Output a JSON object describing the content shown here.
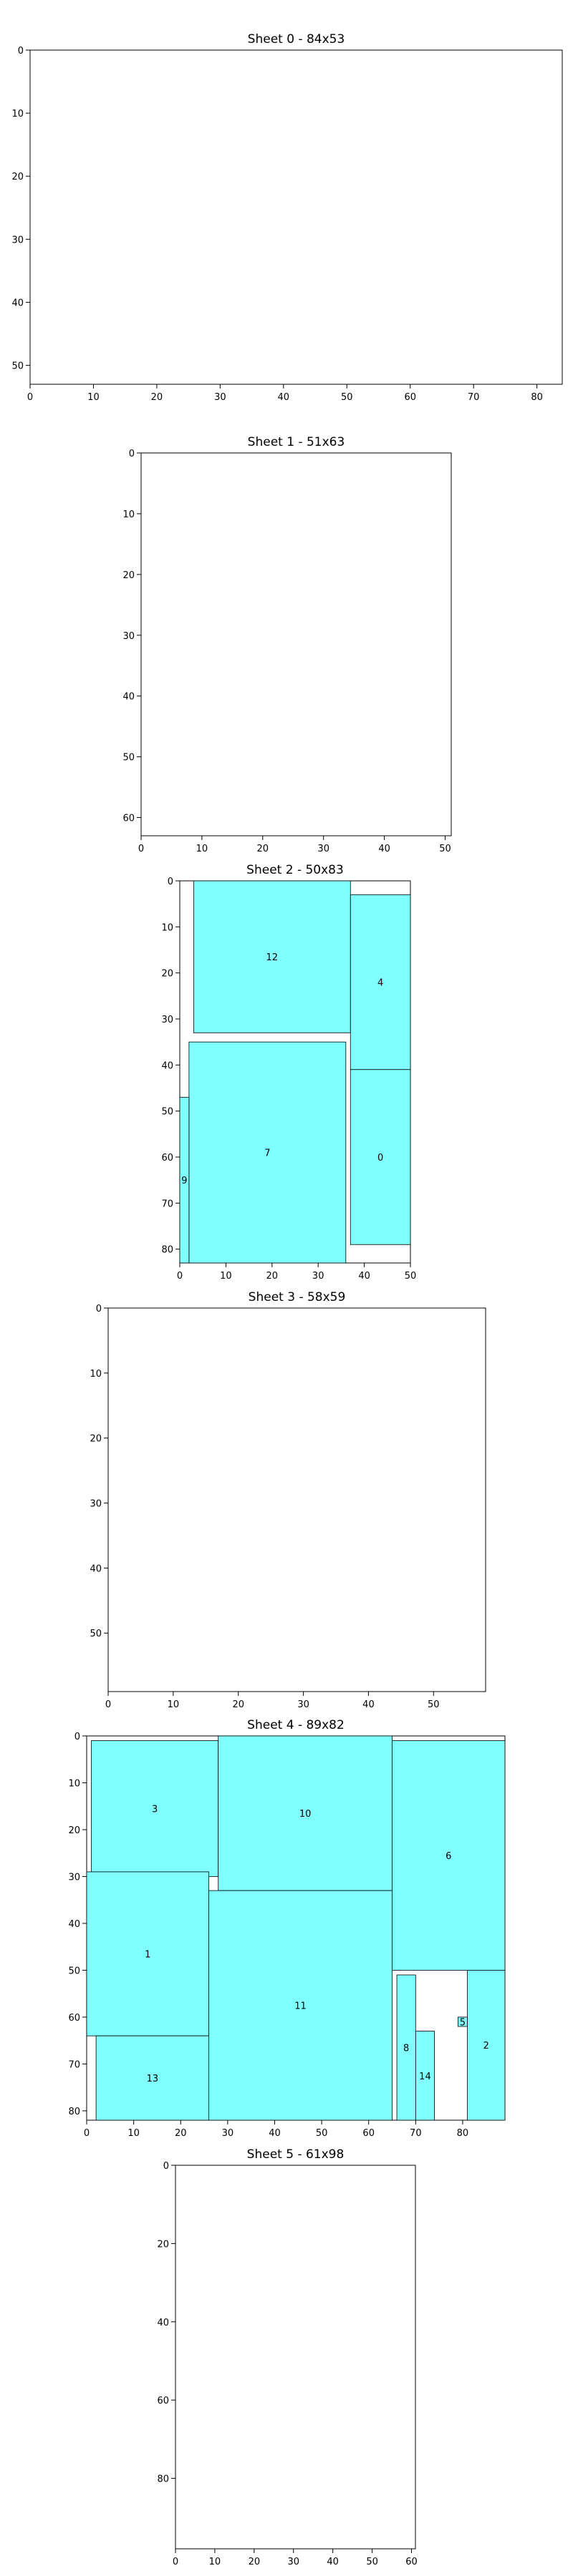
{
  "piece_color": "#80ffff",
  "chart_data": [
    {
      "type": "packing",
      "title": "Sheet 0 - 84x53",
      "width": 84,
      "height": 53,
      "xticks": [
        0,
        10,
        20,
        30,
        40,
        50,
        60,
        70,
        80
      ],
      "yticks": [
        0,
        10,
        20,
        30,
        40,
        50
      ],
      "pieces": []
    },
    {
      "type": "packing",
      "title": "Sheet 1 - 51x63",
      "width": 51,
      "height": 63,
      "xticks": [
        0,
        10,
        20,
        30,
        40,
        50
      ],
      "yticks": [
        0,
        10,
        20,
        30,
        40,
        50,
        60
      ],
      "pieces": []
    },
    {
      "type": "packing",
      "title": "Sheet 2 - 50x83",
      "width": 50,
      "height": 83,
      "xticks": [
        0,
        10,
        20,
        30,
        40,
        50
      ],
      "yticks": [
        0,
        10,
        20,
        30,
        40,
        50,
        60,
        70,
        80
      ],
      "pieces": [
        {
          "id": "12",
          "x": 3,
          "y": 0,
          "w": 34,
          "h": 33
        },
        {
          "id": "4",
          "x": 37,
          "y": 3,
          "w": 13,
          "h": 38
        },
        {
          "id": "7",
          "x": 2,
          "y": 35,
          "w": 34,
          "h": 48
        },
        {
          "id": "0",
          "x": 37,
          "y": 41,
          "w": 13,
          "h": 38
        },
        {
          "id": "9",
          "x": 0,
          "y": 47,
          "w": 2,
          "h": 36
        }
      ]
    },
    {
      "type": "packing",
      "title": "Sheet 3 - 58x59",
      "width": 58,
      "height": 59,
      "xticks": [
        0,
        10,
        20,
        30,
        40,
        50
      ],
      "yticks": [
        0,
        10,
        20,
        30,
        40,
        50
      ],
      "pieces": []
    },
    {
      "type": "packing",
      "title": "Sheet 4 - 89x82",
      "width": 89,
      "height": 82,
      "xticks": [
        0,
        10,
        20,
        30,
        40,
        50,
        60,
        70,
        80
      ],
      "yticks": [
        0,
        10,
        20,
        30,
        40,
        50,
        60,
        70,
        80
      ],
      "pieces": [
        {
          "id": "3",
          "x": 1,
          "y": 1,
          "w": 27,
          "h": 29
        },
        {
          "id": "10",
          "x": 28,
          "y": 0,
          "w": 37,
          "h": 33
        },
        {
          "id": "6",
          "x": 65,
          "y": 1,
          "w": 24,
          "h": 49
        },
        {
          "id": "1",
          "x": 0,
          "y": 29,
          "w": 26,
          "h": 35
        },
        {
          "id": "11",
          "x": 26,
          "y": 33,
          "w": 39,
          "h": 49
        },
        {
          "id": "8",
          "x": 66,
          "y": 51,
          "w": 4,
          "h": 31
        },
        {
          "id": "14",
          "x": 70,
          "y": 63,
          "w": 4,
          "h": 19
        },
        {
          "id": "5",
          "x": 79,
          "y": 60,
          "w": 2,
          "h": 2
        },
        {
          "id": "2",
          "x": 81,
          "y": 50,
          "w": 8,
          "h": 32
        },
        {
          "id": "13",
          "x": 2,
          "y": 64,
          "w": 24,
          "h": 18
        }
      ]
    },
    {
      "type": "packing",
      "title": "Sheet 5 - 61x98",
      "width": 61,
      "height": 98,
      "xticks": [
        0,
        10,
        20,
        30,
        40,
        50,
        60
      ],
      "yticks": [
        0,
        20,
        40,
        60,
        80
      ],
      "pieces": []
    }
  ]
}
